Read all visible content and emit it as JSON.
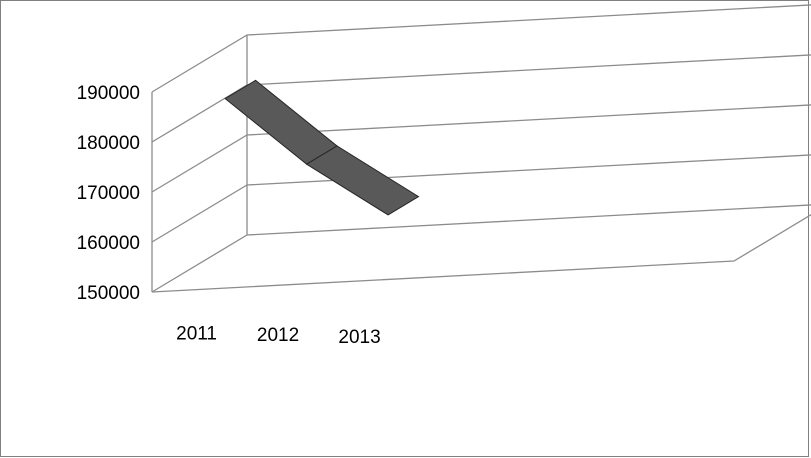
{
  "chart_data": {
    "type": "line",
    "title": "",
    "xlabel": "",
    "ylabel": "",
    "categories": [
      "2011",
      "2012",
      "2013"
    ],
    "series": [
      {
        "values": [
          185000,
          171000,
          160000
        ]
      }
    ],
    "ylim": [
      150000,
      190000
    ],
    "yticks": [
      "150000",
      "160000",
      "170000",
      "180000",
      "190000"
    ],
    "grid": true,
    "legend": "none",
    "three_d": true,
    "colors": {
      "series": "#595959",
      "series_edge": "#262626",
      "grid": "#8c8c8c",
      "frame": "#7f7f7f"
    }
  }
}
